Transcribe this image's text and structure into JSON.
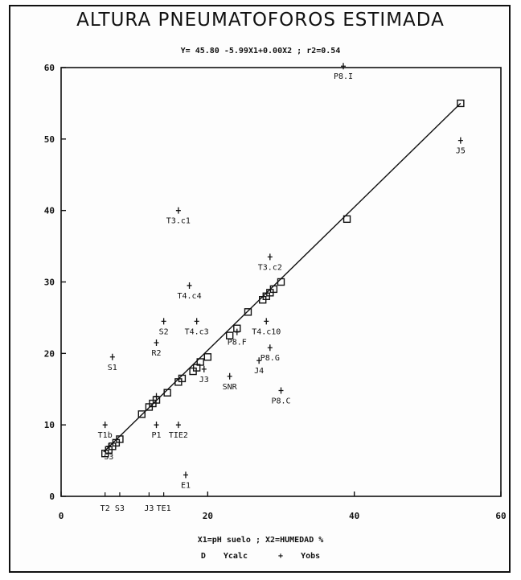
{
  "chart_data": {
    "type": "scatter",
    "title": "ALTURA PNEUMATOFOROS ESTIMADA",
    "subtitle": "Y= 45.80 -5.99X1+0.00X2 ; r2=0.54",
    "xlabel": "X1=pH suelo ; X2=HUMEDAD %",
    "xlim": [
      0,
      60
    ],
    "ylim": [
      0,
      60
    ],
    "xticks": [
      0,
      20,
      40,
      60
    ],
    "yticks": [
      0,
      10,
      20,
      30,
      40,
      50,
      60
    ],
    "grid": false,
    "legend_position": "bottom",
    "fit_line": {
      "x": [
        5.8,
        54.5
      ],
      "y": [
        6.2,
        55.0
      ]
    },
    "series": [
      {
        "name": "Ycalc",
        "marker": "square",
        "points": [
          {
            "x": 6,
            "y": 6
          },
          {
            "x": 6.5,
            "y": 6.5
          },
          {
            "x": 7,
            "y": 7
          },
          {
            "x": 7.5,
            "y": 7.5
          },
          {
            "x": 8,
            "y": 8
          },
          {
            "x": 11,
            "y": 11.5
          },
          {
            "x": 12,
            "y": 12.5
          },
          {
            "x": 12.5,
            "y": 13
          },
          {
            "x": 13,
            "y": 13.5
          },
          {
            "x": 14.5,
            "y": 14.5
          },
          {
            "x": 16,
            "y": 16
          },
          {
            "x": 16.5,
            "y": 16.5
          },
          {
            "x": 18,
            "y": 17.5
          },
          {
            "x": 18.5,
            "y": 18
          },
          {
            "x": 19,
            "y": 18.8
          },
          {
            "x": 20,
            "y": 19.5
          },
          {
            "x": 23,
            "y": 22.5
          },
          {
            "x": 24,
            "y": 23.5
          },
          {
            "x": 25.5,
            "y": 25.8
          },
          {
            "x": 27.5,
            "y": 27.5
          },
          {
            "x": 28,
            "y": 28
          },
          {
            "x": 28.5,
            "y": 28.5
          },
          {
            "x": 29,
            "y": 29
          },
          {
            "x": 30,
            "y": 30
          },
          {
            "x": 39,
            "y": 38.8
          },
          {
            "x": 54.5,
            "y": 55
          }
        ]
      },
      {
        "name": "Yobs",
        "marker": "plus",
        "points": [
          {
            "x": 38.5,
            "y": 60.2,
            "label": "P8.I"
          },
          {
            "x": 54.5,
            "y": 49.8,
            "label": "J5"
          },
          {
            "x": 16,
            "y": 40,
            "label": "T3.c1"
          },
          {
            "x": 28.5,
            "y": 33.5,
            "label": "T3.c2"
          },
          {
            "x": 17.5,
            "y": 29.5,
            "label": "T4.c4"
          },
          {
            "x": 14,
            "y": 24.5,
            "label": "S2"
          },
          {
            "x": 18.5,
            "y": 24.5,
            "label": "T4.c3"
          },
          {
            "x": 28,
            "y": 24.5,
            "label": "T4.c10"
          },
          {
            "x": 24,
            "y": 23,
            "label": "P8.F"
          },
          {
            "x": 13,
            "y": 21.5,
            "label": "R2"
          },
          {
            "x": 7,
            "y": 19.5,
            "label": "S1"
          },
          {
            "x": 28.5,
            "y": 20.8,
            "label": "P8.G"
          },
          {
            "x": 27,
            "y": 19,
            "label": "J4"
          },
          {
            "x": 19.5,
            "y": 17.8,
            "label": "J3"
          },
          {
            "x": 23,
            "y": 16.8,
            "label": "SNR"
          },
          {
            "x": 30,
            "y": 14.8,
            "label": "P8.C"
          },
          {
            "x": 13,
            "y": 14,
            "label": ""
          },
          {
            "x": 6,
            "y": 10,
            "label": "T1b"
          },
          {
            "x": 13,
            "y": 10,
            "label": "P1"
          },
          {
            "x": 16,
            "y": 10,
            "label": "TIE2"
          },
          {
            "x": 6.5,
            "y": 7,
            "label": "S3"
          },
          {
            "x": 17,
            "y": 3,
            "label": "E1"
          }
        ]
      }
    ],
    "x_axis_codes": [
      {
        "x": 6,
        "label": "T2"
      },
      {
        "x": 8,
        "label": "S3"
      },
      {
        "x": 12,
        "label": "J3"
      },
      {
        "x": 14,
        "label": "TE1"
      }
    ]
  },
  "legend": {
    "ycalc_symbol": "D",
    "ycalc_label": "Ycalc",
    "yobs_symbol": "+",
    "yobs_label": "Yobs"
  },
  "colors": {
    "ink": "#111111",
    "paper": "#fdfdfd"
  }
}
